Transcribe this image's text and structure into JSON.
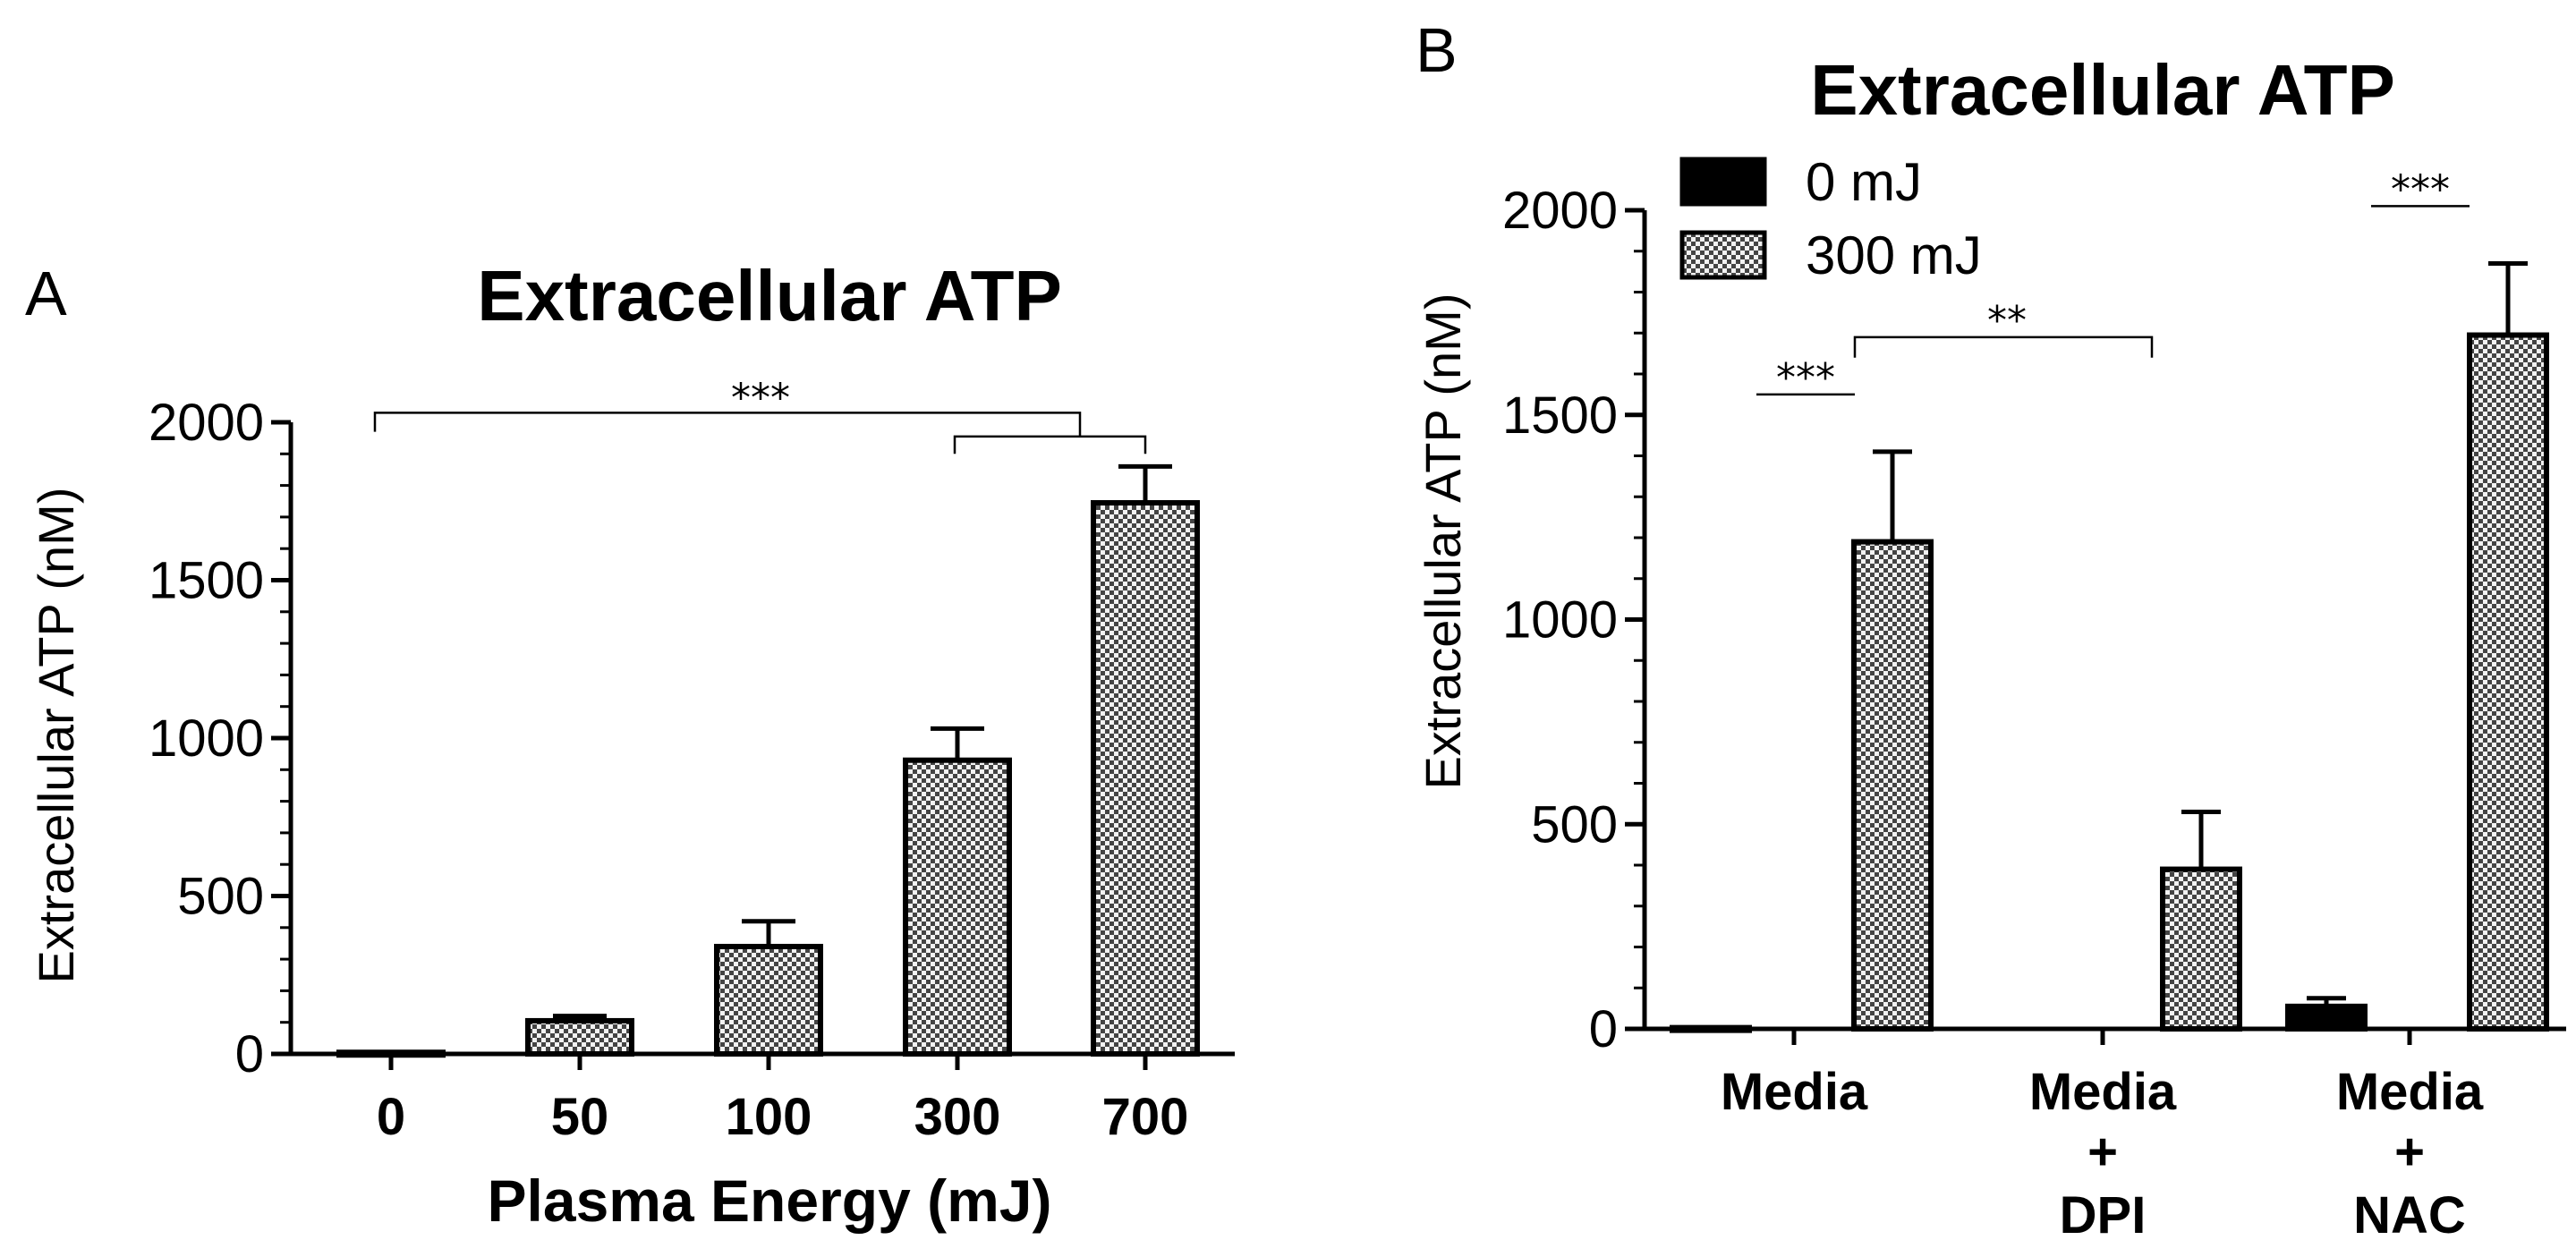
{
  "chart_data": [
    {
      "panel": "A",
      "type": "bar",
      "title": "Extracellular ATP",
      "xlabel": "Plasma Energy (mJ)",
      "ylabel": "Extracellular ATP (nM)",
      "ylim": [
        0,
        2000
      ],
      "yticks": [
        "0",
        "500",
        "1000",
        "1500",
        "2000"
      ],
      "categories": [
        "0",
        "50",
        "100",
        "300",
        "700"
      ],
      "values": [
        5,
        105,
        340,
        930,
        1745
      ],
      "errors": [
        5,
        15,
        80,
        100,
        115
      ],
      "significance": [
        {
          "label": "***",
          "from": "0",
          "to": "300–700"
        },
        {
          "label": "",
          "from": "300",
          "to": "700"
        }
      ]
    },
    {
      "panel": "B",
      "type": "bar",
      "title": "Extracellular ATP",
      "xlabel": "",
      "ylabel": "Extracellular ATP (nM)",
      "ylim": [
        0,
        2000
      ],
      "yticks": [
        "0",
        "500",
        "1000",
        "1500",
        "2000"
      ],
      "categories": [
        [
          "Media"
        ],
        [
          "Media",
          "+",
          "DPI"
        ],
        [
          "Media",
          "+",
          "NAC"
        ]
      ],
      "series": [
        {
          "name": "0 mJ",
          "values": [
            3,
            0,
            55
          ],
          "errors": [
            0,
            0,
            20
          ]
        },
        {
          "name": "300 mJ",
          "values": [
            1190,
            390,
            1695
          ],
          "errors": [
            220,
            140,
            175
          ]
        }
      ],
      "significance": [
        {
          "label": "***",
          "group": "Media"
        },
        {
          "label": "**",
          "from": "Media 300 mJ",
          "to": "Media + DPI 300 mJ"
        },
        {
          "label": "***",
          "group": "Media + NAC"
        }
      ]
    }
  ],
  "colors": {
    "bar_pattern_dark": "#444444",
    "bar_pattern_light": "#f2f2f2",
    "solid_bar": "#000000",
    "axis": "#000000"
  }
}
